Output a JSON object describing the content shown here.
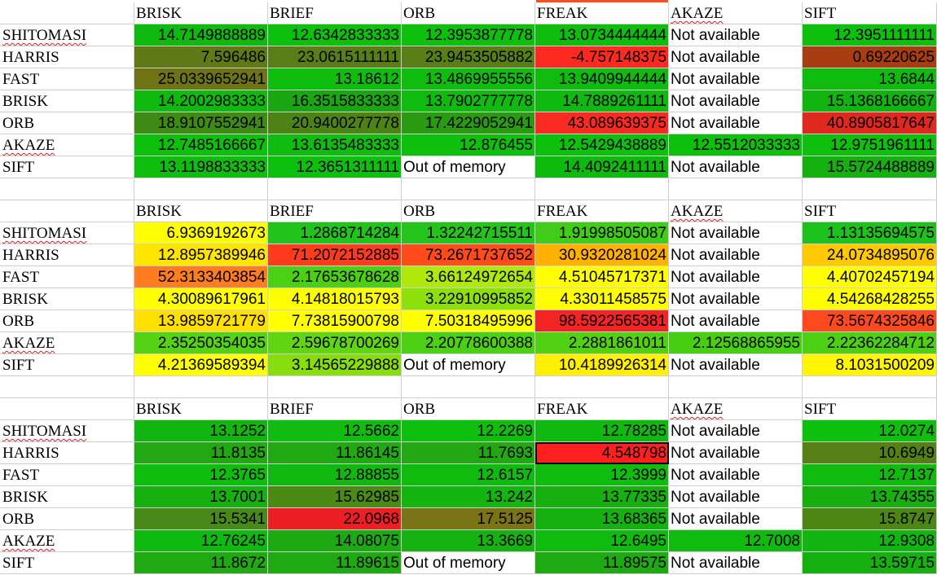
{
  "sheet": {
    "tables": [
      {
        "columns": [
          "BRISK",
          "BRIEF",
          "ORB",
          "FREAK",
          "AKAZE",
          "SIFT"
        ],
        "rows": [
          {
            "label": "SHITOMASI",
            "cells": [
              {
                "value": "14.7149888889",
                "bg": "#0fb90f"
              },
              {
                "value": "12.6342833333",
                "bg": "#0ec00e"
              },
              {
                "value": "12.3953877778",
                "bg": "#0ec00e"
              },
              {
                "value": "13.0734444444",
                "bg": "#0fbd0f"
              },
              {
                "value": "Not available",
                "bg": "#ffffff"
              },
              {
                "value": "12.3951111111",
                "bg": "#0ec00e"
              }
            ]
          },
          {
            "label": "HARRIS",
            "cells": [
              {
                "value": "7.596486",
                "bg": "#5f7a15"
              },
              {
                "value": "23.0615111111",
                "bg": "#5a7e16"
              },
              {
                "value": "23.9453505882",
                "bg": "#587e15"
              },
              {
                "value": "-4.757148375",
                "bg": "#ff2a1f"
              },
              {
                "value": "Not available",
                "bg": "#ffffff"
              },
              {
                "value": "0.69220625",
                "bg": "#a83d0f"
              }
            ]
          },
          {
            "label": "FAST",
            "cells": [
              {
                "value": "25.0339652941",
                "bg": "#6e7416"
              },
              {
                "value": "13.18612",
                "bg": "#0fbd0f"
              },
              {
                "value": "13.4869955556",
                "bg": "#0fbc0f"
              },
              {
                "value": "13.9409944444",
                "bg": "#0fbb0f"
              },
              {
                "value": "Not available",
                "bg": "#ffffff"
              },
              {
                "value": "13.6844",
                "bg": "#0fbb0f"
              }
            ]
          },
          {
            "label": "BRISK",
            "cells": [
              {
                "value": "14.2002983333",
                "bg": "#0fba0f"
              },
              {
                "value": "16.3515833333",
                "bg": "#1aa512"
              },
              {
                "value": "13.7902777778",
                "bg": "#0fbb0f"
              },
              {
                "value": "14.7889261111",
                "bg": "#0fb90f"
              },
              {
                "value": "Not available",
                "bg": "#ffffff"
              },
              {
                "value": "15.1368166667",
                "bg": "#12b410"
              }
            ]
          },
          {
            "label": "ORB",
            "cells": [
              {
                "value": "18.9107552941",
                "bg": "#3e8a14"
              },
              {
                "value": "20.9400277778",
                "bg": "#4d8315"
              },
              {
                "value": "17.4229052941",
                "bg": "#2a9a13"
              },
              {
                "value": "43.089639375",
                "bg": "#f82a22"
              },
              {
                "value": "Not available",
                "bg": "#ffffff"
              },
              {
                "value": "40.8905817647",
                "bg": "#e0281e"
              }
            ]
          },
          {
            "label": "AKAZE",
            "cells": [
              {
                "value": "12.7485166667",
                "bg": "#0ec00e"
              },
              {
                "value": "13.6135483333",
                "bg": "#0fbc0f"
              },
              {
                "value": "12.876455",
                "bg": "#0ebf0e"
              },
              {
                "value": "12.5429438889",
                "bg": "#0ec00e"
              },
              {
                "value": "12.5512033333",
                "bg": "#0ec00e"
              },
              {
                "value": "12.9751961111",
                "bg": "#0ebf0e"
              }
            ]
          },
          {
            "label": "SIFT",
            "cells": [
              {
                "value": "13.1198833333",
                "bg": "#0fbd0f"
              },
              {
                "value": "12.3651311111",
                "bg": "#0ec00e"
              },
              {
                "value": "Out of memory",
                "bg": "#ffffff"
              },
              {
                "value": "14.4092411111",
                "bg": "#0fba0f"
              },
              {
                "value": "Not available",
                "bg": "#ffffff"
              },
              {
                "value": "15.5724488889",
                "bg": "#14b111"
              }
            ]
          }
        ]
      },
      {
        "columns": [
          "BRISK",
          "BRIEF",
          "ORB",
          "FREAK",
          "AKAZE",
          "SIFT"
        ],
        "rows": [
          {
            "label": "SHITOMASI",
            "cells": [
              {
                "value": "6.9369192673",
                "bg": "#ffff00"
              },
              {
                "value": "1.2868714284",
                "bg": "#22c41c"
              },
              {
                "value": "1.32242715511",
                "bg": "#24c41c"
              },
              {
                "value": "1.91998505087",
                "bg": "#40cc18"
              },
              {
                "value": "Not available",
                "bg": "#ffffff"
              },
              {
                "value": "1.13135694575",
                "bg": "#1ec21c"
              }
            ]
          },
          {
            "label": "HARRIS",
            "cells": [
              {
                "value": "12.8957389946",
                "bg": "#ffe600"
              },
              {
                "value": "71.2072152885",
                "bg": "#ff3b1f"
              },
              {
                "value": "73.2671737652",
                "bg": "#ff4a1a"
              },
              {
                "value": "30.9320281024",
                "bg": "#ffb000"
              },
              {
                "value": "Not available",
                "bg": "#ffffff"
              },
              {
                "value": "24.0734895076",
                "bg": "#ffc800"
              }
            ]
          },
          {
            "label": "FAST",
            "cells": [
              {
                "value": "52.3133403854",
                "bg": "#ff7d1e"
              },
              {
                "value": "2.17653678628",
                "bg": "#4cd014"
              },
              {
                "value": "3.66124972654",
                "bg": "#b0e80a"
              },
              {
                "value": "4.51045717371",
                "bg": "#ffff00"
              },
              {
                "value": "Not available",
                "bg": "#ffffff"
              },
              {
                "value": "4.40702457194",
                "bg": "#ffff00"
              }
            ]
          },
          {
            "label": "BRISK",
            "cells": [
              {
                "value": "4.30089617961",
                "bg": "#ffff00"
              },
              {
                "value": "4.14818015793",
                "bg": "#ffff00"
              },
              {
                "value": "3.22910995852",
                "bg": "#8ee00c"
              },
              {
                "value": "4.33011458575",
                "bg": "#ffff00"
              },
              {
                "value": "Not available",
                "bg": "#ffffff"
              },
              {
                "value": "4.54268428255",
                "bg": "#ffff00"
              }
            ]
          },
          {
            "label": "ORB",
            "cells": [
              {
                "value": "13.9859721779",
                "bg": "#ffe000"
              },
              {
                "value": "7.73815900798",
                "bg": "#ffff00"
              },
              {
                "value": "7.50318495996",
                "bg": "#ffff00"
              },
              {
                "value": "98.5922565381",
                "bg": "#f22424"
              },
              {
                "value": "Not available",
                "bg": "#ffffff"
              },
              {
                "value": "73.5674325846",
                "bg": "#ff4a1f"
              }
            ]
          },
          {
            "label": "AKAZE",
            "cells": [
              {
                "value": "2.35250354035",
                "bg": "#55d213"
              },
              {
                "value": "2.59678700269",
                "bg": "#62d512"
              },
              {
                "value": "2.20778600388",
                "bg": "#4cd014"
              },
              {
                "value": "2.2881861011",
                "bg": "#52d113"
              },
              {
                "value": "2.12568865955",
                "bg": "#48cf14"
              },
              {
                "value": "2.22362284712",
                "bg": "#4dd014"
              }
            ]
          },
          {
            "label": "SIFT",
            "cells": [
              {
                "value": "4.21369589394",
                "bg": "#ffff00"
              },
              {
                "value": "3.14565229888",
                "bg": "#88de0c"
              },
              {
                "value": "Out of memory",
                "bg": "#ffffff"
              },
              {
                "value": "10.4189926314",
                "bg": "#ffef00"
              },
              {
                "value": "Not available",
                "bg": "#ffffff"
              },
              {
                "value": "8.1031500209",
                "bg": "#fff600"
              }
            ]
          }
        ]
      },
      {
        "columns": [
          "BRISK",
          "BRIEF",
          "ORB",
          "FREAK",
          "AKAZE",
          "SIFT"
        ],
        "rows": [
          {
            "label": "SHITOMASI",
            "cells": [
              {
                "value": "13.1252",
                "bg": "#13b511"
              },
              {
                "value": "12.5662",
                "bg": "#0fbc0f"
              },
              {
                "value": "12.2269",
                "bg": "#0ebf0e"
              },
              {
                "value": "12.78285",
                "bg": "#10b910"
              },
              {
                "value": "Not available",
                "bg": "#ffffff"
              },
              {
                "value": "12.0274",
                "bg": "#0ec00e"
              }
            ]
          },
          {
            "label": "HARRIS",
            "cells": [
              {
                "value": "11.8135",
                "bg": "#21a812"
              },
              {
                "value": "11.86145",
                "bg": "#20a912"
              },
              {
                "value": "11.7693",
                "bg": "#22a812",
                "boxed": false
              },
              {
                "value": "4.548798",
                "bg": "#ff1f1f",
                "boxed": true
              },
              {
                "value": "Not available",
                "bg": "#ffffff"
              },
              {
                "value": "10.6949",
                "bg": "#548016"
              }
            ]
          },
          {
            "label": "FAST",
            "cells": [
              {
                "value": "12.3765",
                "bg": "#0fbd0f"
              },
              {
                "value": "12.88855",
                "bg": "#11b810"
              },
              {
                "value": "12.6157",
                "bg": "#10bb0f"
              },
              {
                "value": "12.3999",
                "bg": "#0fbd0f"
              },
              {
                "value": "Not available",
                "bg": "#ffffff"
              },
              {
                "value": "12.7137",
                "bg": "#10ba0f"
              }
            ]
          },
          {
            "label": "BRISK",
            "cells": [
              {
                "value": "13.7001",
                "bg": "#17b011"
              },
              {
                "value": "15.62985",
                "bg": "#4a8a15"
              },
              {
                "value": "13.242",
                "bg": "#14b411"
              },
              {
                "value": "13.77335",
                "bg": "#18af11"
              },
              {
                "value": "Not available",
                "bg": "#ffffff"
              },
              {
                "value": "13.74355",
                "bg": "#18af11"
              }
            ]
          },
          {
            "label": "ORB",
            "cells": [
              {
                "value": "15.5341",
                "bg": "#48891a"
              },
              {
                "value": "22.0968",
                "bg": "#ed1f24"
              },
              {
                "value": "17.5125",
                "bg": "#7a7416"
              },
              {
                "value": "13.68365",
                "bg": "#17b011"
              },
              {
                "value": "Not available",
                "bg": "#ffffff"
              },
              {
                "value": "15.8747",
                "bg": "#4e8616"
              }
            ]
          },
          {
            "label": "AKAZE",
            "cells": [
              {
                "value": "12.76245",
                "bg": "#10b910"
              },
              {
                "value": "14.08075",
                "bg": "#1ca911"
              },
              {
                "value": "13.3669",
                "bg": "#15b211"
              },
              {
                "value": "12.6495",
                "bg": "#0fbb0f"
              },
              {
                "value": "12.7008",
                "bg": "#10ba0f"
              },
              {
                "value": "12.9308",
                "bg": "#11b710"
              }
            ]
          },
          {
            "label": "SIFT",
            "cells": [
              {
                "value": "11.8672",
                "bg": "#20a912"
              },
              {
                "value": "11.89615",
                "bg": "#1fa912"
              },
              {
                "value": "Out of memory",
                "bg": "#ffffff"
              },
              {
                "value": "11.89575",
                "bg": "#1fa912"
              },
              {
                "value": "Not available",
                "bg": "#ffffff"
              },
              {
                "value": "13.59715",
                "bg": "#16b111"
              }
            ]
          }
        ]
      }
    ]
  }
}
